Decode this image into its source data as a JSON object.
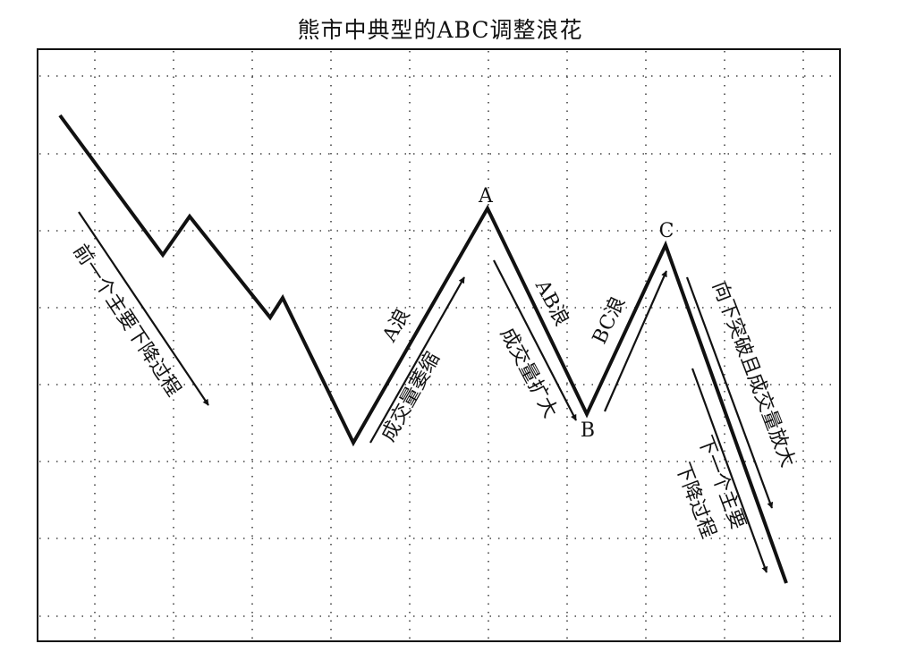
{
  "title": "熊市中典型的ABC调整浪花",
  "points": {
    "A": "A",
    "B": "B",
    "C": "C"
  },
  "labels": {
    "prev_decline": "前一个主要下降过程",
    "a_wave": "A浪",
    "volume_shrink": "成交量萎缩",
    "ab_wave": "AB浪",
    "volume_expand": "成交量扩大",
    "bc_wave": "BC浪",
    "breakdown": "向下突破且成交量放大",
    "next_decline_1": "下一个主要",
    "next_decline_2": "下降过程"
  },
  "colors": {
    "ink": "#111111",
    "grid": "#444444",
    "background": "#ffffff"
  }
}
